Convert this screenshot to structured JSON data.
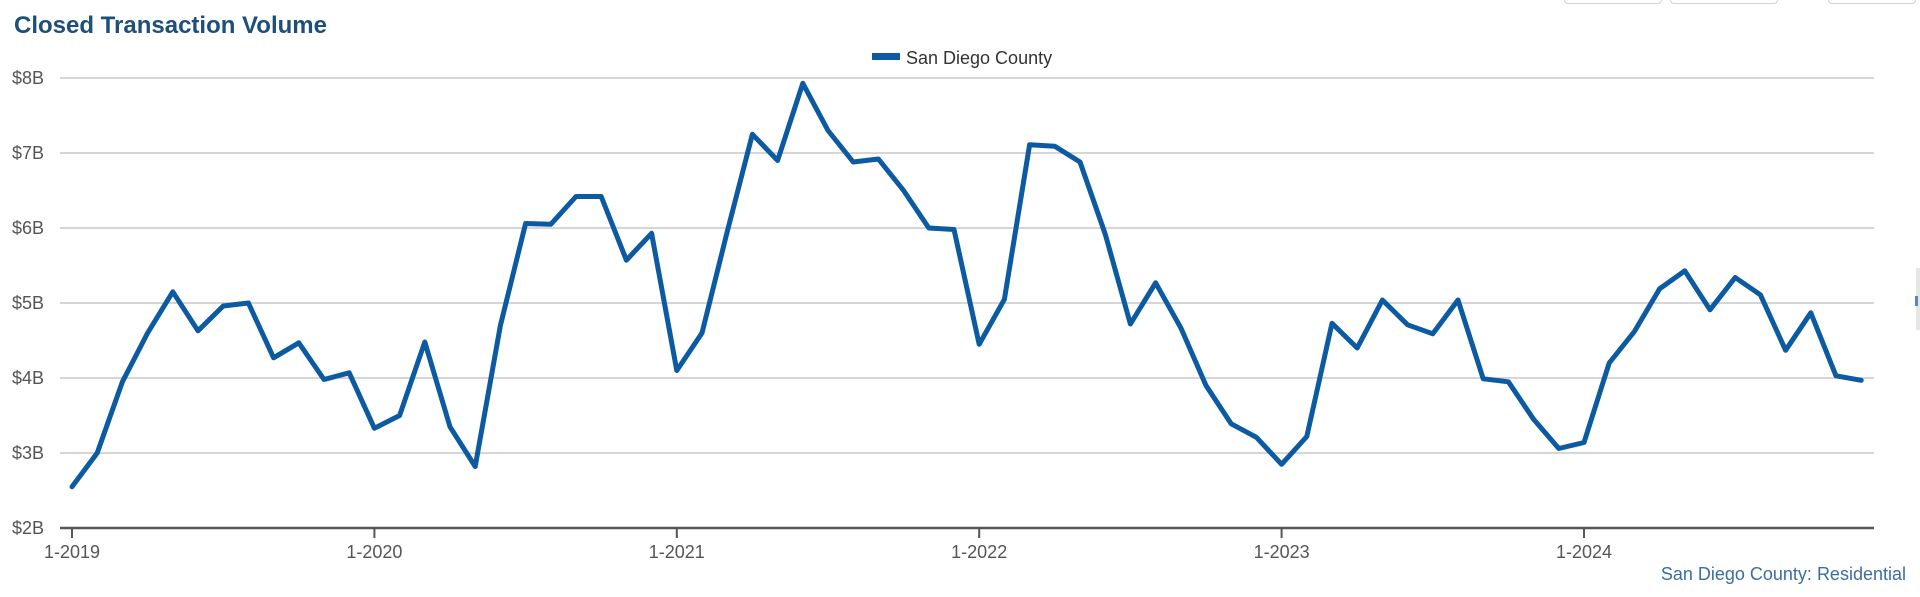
{
  "chart_data": {
    "type": "line",
    "title": "Closed Transaction Volume",
    "credit": "San Diego County: Residential",
    "legend_position": "top-center",
    "grid": true,
    "color": "#0b5aa2",
    "ylim": [
      2,
      8
    ],
    "y_ticks": [
      {
        "value": 2,
        "label": "$2B"
      },
      {
        "value": 3,
        "label": "$3B"
      },
      {
        "value": 4,
        "label": "$4B"
      },
      {
        "value": 5,
        "label": "$5B"
      },
      {
        "value": 6,
        "label": "$6B"
      },
      {
        "value": 7,
        "label": "$7B"
      },
      {
        "value": 8,
        "label": "$8B"
      }
    ],
    "x_ticks": [
      "1-2019",
      "1-2020",
      "1-2021",
      "1-2022",
      "1-2023",
      "1-2024"
    ],
    "x_start": "1-2019",
    "series": [
      {
        "name": "San Diego County",
        "values": [
          2.55,
          3.0,
          3.95,
          4.6,
          5.15,
          4.63,
          4.96,
          5.0,
          4.27,
          4.47,
          3.98,
          4.07,
          3.33,
          3.5,
          4.48,
          3.35,
          2.82,
          4.7,
          6.06,
          6.05,
          6.42,
          6.42,
          5.57,
          5.93,
          4.1,
          4.6,
          5.95,
          7.25,
          6.9,
          7.93,
          7.3,
          6.88,
          6.92,
          6.5,
          6.0,
          5.98,
          4.45,
          5.05,
          7.11,
          7.09,
          6.88,
          5.92,
          4.72,
          5.27,
          4.67,
          3.9,
          3.39,
          3.21,
          2.85,
          3.22,
          4.73,
          4.4,
          5.04,
          4.71,
          4.59,
          5.04,
          3.99,
          3.95,
          3.45,
          3.06,
          3.14,
          4.2,
          4.62,
          5.19,
          5.43,
          4.91,
          5.34,
          5.11,
          4.37,
          4.87,
          4.03,
          3.97
        ]
      }
    ]
  }
}
